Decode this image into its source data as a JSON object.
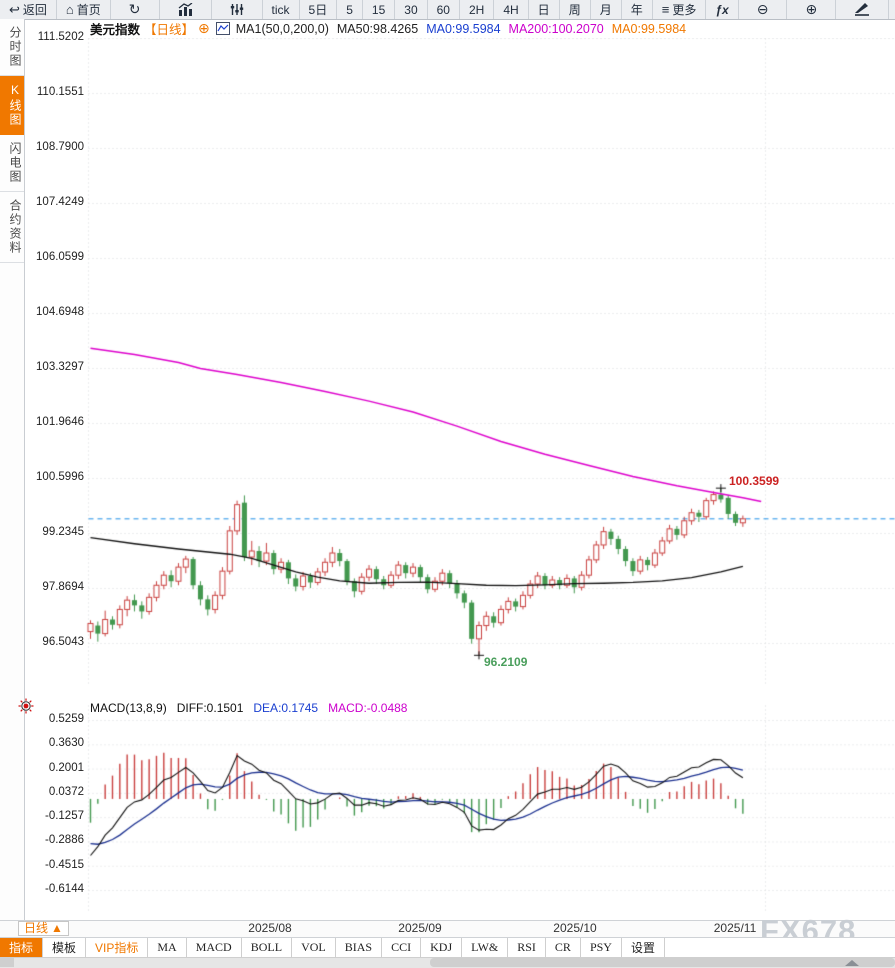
{
  "toolbar": {
    "back": {
      "icon": "↩",
      "label": "返回"
    },
    "home": {
      "icon": "⌂",
      "label": "首页"
    },
    "refresh_icon": "↻",
    "tick": "tick",
    "d5": "5日",
    "m5": "5",
    "m15": "15",
    "m30": "30",
    "m60": "60",
    "h2": "2H",
    "h4": "4H",
    "day": "日",
    "week": "周",
    "month": "月",
    "year": "年",
    "more": {
      "icon": "≡",
      "label": "更多"
    },
    "fx": "ƒx",
    "zoom_out": "⊖",
    "zoom_in": "⊕"
  },
  "legend": {
    "symbol": "美元指数",
    "period": "【日线】",
    "add_icon": "⊕",
    "ma_group": "MA1(50,0,200,0)",
    "ma50": "MA50:98.4265",
    "ma0_blue": "MA0:99.5984",
    "ma200": "MA200:100.2070",
    "ma0_orange": "MA0:99.5984"
  },
  "sidebar": {
    "items": [
      {
        "label": "分时图",
        "active": false
      },
      {
        "label": "K线图",
        "active": true
      },
      {
        "label": "闪电图",
        "active": false
      },
      {
        "label": "合约资料",
        "active": false
      }
    ]
  },
  "macd_header": {
    "title": "MACD(13,8,9)",
    "diff": "DIFF:0.1501",
    "dea": "DEA:0.1745",
    "macd": "MACD:-0.0488"
  },
  "annotations": {
    "high_label": "100.3599",
    "low_label": "96.2109"
  },
  "date_axis": {
    "period_label": "日线",
    "period_arrow": "▲",
    "watermark": "FX678"
  },
  "bottom_tabs": {
    "items": [
      {
        "label": "指标",
        "style": "active"
      },
      {
        "label": "模板",
        "style": ""
      },
      {
        "label": "VIP指标",
        "style": "vip"
      },
      {
        "label": "MA",
        "style": ""
      },
      {
        "label": "MACD",
        "style": ""
      },
      {
        "label": "BOLL",
        "style": ""
      },
      {
        "label": "VOL",
        "style": ""
      },
      {
        "label": "BIAS",
        "style": ""
      },
      {
        "label": "CCI",
        "style": ""
      },
      {
        "label": "KDJ",
        "style": ""
      },
      {
        "label": "LW&",
        "style": ""
      },
      {
        "label": "RSI",
        "style": ""
      },
      {
        "label": "CR",
        "style": ""
      },
      {
        "label": "PSY",
        "style": ""
      },
      {
        "label": "设置",
        "style": ""
      }
    ]
  },
  "chart_data": {
    "type": "candlestick+macd",
    "symbol": "美元指数",
    "period": "日线",
    "colors": {
      "up": "#c9403f",
      "down": "#43984f",
      "ma50": "#111111",
      "ma200": "#dd00cc",
      "last_price_line": "#1e8fe8",
      "diff": "#111111",
      "dea": "#1a2f8f",
      "grid": "#d8dadd",
      "hist_up": "#c9403f",
      "hist_down": "#43984f"
    },
    "main": {
      "y_ticks": [
        111.5202,
        110.1551,
        108.79,
        107.4249,
        106.0599,
        104.6948,
        103.3297,
        101.9646,
        100.5996,
        99.2345,
        97.8694,
        96.5043
      ],
      "candle_order": "open,close,low,high",
      "candles": [
        [
          96.8,
          97.0,
          96.62,
          97.08
        ],
        [
          96.95,
          96.75,
          96.55,
          97.05
        ],
        [
          96.75,
          97.1,
          96.68,
          97.32
        ],
        [
          97.1,
          96.97,
          96.85,
          97.18
        ],
        [
          96.97,
          97.35,
          96.88,
          97.45
        ],
        [
          97.35,
          97.58,
          97.18,
          97.68
        ],
        [
          97.58,
          97.45,
          97.3,
          97.72
        ],
        [
          97.45,
          97.3,
          97.12,
          97.55
        ],
        [
          97.3,
          97.65,
          97.22,
          97.75
        ],
        [
          97.65,
          97.95,
          97.55,
          98.05
        ],
        [
          97.95,
          98.2,
          97.85,
          98.3
        ],
        [
          98.2,
          98.05,
          97.9,
          98.32
        ],
        [
          98.05,
          98.4,
          97.95,
          98.5
        ],
        [
          98.4,
          98.6,
          98.25,
          98.68
        ],
        [
          98.6,
          97.95,
          97.85,
          98.65
        ],
        [
          97.95,
          97.6,
          97.45,
          98.05
        ],
        [
          97.6,
          97.35,
          97.2,
          97.7
        ],
        [
          97.35,
          97.7,
          97.25,
          97.8
        ],
        [
          97.7,
          98.3,
          97.6,
          98.4
        ],
        [
          98.3,
          99.3,
          98.22,
          99.42
        ],
        [
          99.3,
          99.95,
          99.2,
          100.05
        ],
        [
          100.0,
          98.65,
          98.55,
          100.18
        ],
        [
          98.65,
          98.8,
          98.45,
          99.05
        ],
        [
          98.8,
          98.55,
          98.4,
          98.92
        ],
        [
          98.55,
          98.75,
          98.45,
          99.0
        ],
        [
          98.75,
          98.35,
          98.22,
          98.82
        ],
        [
          98.35,
          98.52,
          98.25,
          98.62
        ],
        [
          98.52,
          98.12,
          97.98,
          98.58
        ],
        [
          98.12,
          97.92,
          97.8,
          98.22
        ],
        [
          97.92,
          98.18,
          97.82,
          98.28
        ],
        [
          98.18,
          98.02,
          97.88,
          98.25
        ],
        [
          98.02,
          98.28,
          97.95,
          98.38
        ],
        [
          98.28,
          98.52,
          98.18,
          98.62
        ],
        [
          98.52,
          98.75,
          98.4,
          98.9
        ],
        [
          98.75,
          98.55,
          98.42,
          98.85
        ],
        [
          98.55,
          98.05,
          97.95,
          98.6
        ],
        [
          98.05,
          97.8,
          97.65,
          98.12
        ],
        [
          97.8,
          98.15,
          97.72,
          98.25
        ],
        [
          98.15,
          98.35,
          98.05,
          98.45
        ],
        [
          98.35,
          98.1,
          97.98,
          98.42
        ],
        [
          98.1,
          97.95,
          97.85,
          98.18
        ],
        [
          97.95,
          98.2,
          97.88,
          98.3
        ],
        [
          98.2,
          98.45,
          98.1,
          98.55
        ],
        [
          98.45,
          98.25,
          98.12,
          98.52
        ],
        [
          98.25,
          98.4,
          98.15,
          98.5
        ],
        [
          98.4,
          98.15,
          98.02,
          98.46
        ],
        [
          98.15,
          97.85,
          97.75,
          98.22
        ],
        [
          97.85,
          98.05,
          97.78,
          98.15
        ],
        [
          98.05,
          98.25,
          97.95,
          98.35
        ],
        [
          98.25,
          98.0,
          97.88,
          98.32
        ],
        [
          98.0,
          97.75,
          97.62,
          98.08
        ],
        [
          97.75,
          97.52,
          97.38,
          97.82
        ],
        [
          97.52,
          96.62,
          96.5,
          97.58
        ],
        [
          96.62,
          96.95,
          96.2109,
          97.05
        ],
        [
          96.95,
          97.18,
          96.82,
          97.3
        ],
        [
          97.18,
          97.02,
          96.9,
          97.28
        ],
        [
          97.02,
          97.35,
          96.95,
          97.45
        ],
        [
          97.35,
          97.55,
          97.25,
          97.65
        ],
        [
          97.55,
          97.42,
          97.3,
          97.62
        ],
        [
          97.42,
          97.7,
          97.35,
          97.8
        ],
        [
          97.7,
          97.98,
          97.62,
          98.08
        ],
        [
          97.98,
          98.18,
          97.88,
          98.28
        ],
        [
          98.18,
          97.95,
          97.85,
          98.25
        ],
        [
          97.95,
          98.08,
          97.88,
          98.18
        ],
        [
          98.08,
          97.95,
          97.85,
          98.15
        ],
        [
          97.95,
          98.12,
          97.88,
          98.22
        ],
        [
          98.12,
          97.9,
          97.75,
          98.18
        ],
        [
          97.9,
          98.2,
          97.82,
          98.3
        ],
        [
          98.2,
          98.58,
          98.12,
          98.68
        ],
        [
          98.58,
          98.95,
          98.5,
          99.05
        ],
        [
          98.95,
          99.28,
          98.85,
          99.4
        ],
        [
          99.28,
          99.1,
          98.95,
          99.35
        ],
        [
          99.1,
          98.85,
          98.72,
          99.18
        ],
        [
          98.85,
          98.55,
          98.42,
          98.92
        ],
        [
          98.55,
          98.3,
          98.18,
          98.62
        ],
        [
          98.3,
          98.58,
          98.22,
          98.68
        ],
        [
          98.58,
          98.45,
          98.32,
          98.65
        ],
        [
          98.45,
          98.75,
          98.38,
          98.85
        ],
        [
          98.75,
          99.05,
          98.68,
          99.15
        ],
        [
          99.05,
          99.35,
          98.98,
          99.45
        ],
        [
          99.35,
          99.2,
          99.08,
          99.42
        ],
        [
          99.2,
          99.55,
          99.12,
          99.65
        ],
        [
          99.55,
          99.75,
          99.45,
          99.85
        ],
        [
          99.75,
          99.65,
          99.52,
          99.82
        ],
        [
          99.65,
          100.05,
          99.58,
          100.12
        ],
        [
          100.05,
          100.2,
          99.95,
          100.28
        ],
        [
          100.2,
          100.08,
          100.0,
          100.3599
        ],
        [
          100.12,
          99.72,
          99.6,
          100.18
        ],
        [
          99.72,
          99.5,
          99.42,
          99.78
        ],
        [
          99.5,
          99.5984,
          99.4,
          99.68
        ]
      ],
      "ma50_points": [
        [
          0,
          99.13
        ],
        [
          6,
          98.98
        ],
        [
          12,
          98.85
        ],
        [
          19,
          98.72
        ],
        [
          22,
          98.62
        ],
        [
          25,
          98.45
        ],
        [
          28,
          98.28
        ],
        [
          31,
          98.15
        ],
        [
          34,
          98.06
        ],
        [
          38,
          98.0
        ],
        [
          42,
          98.02
        ],
        [
          46,
          98.03
        ],
        [
          50,
          97.99
        ],
        [
          54,
          97.95
        ],
        [
          58,
          97.94
        ],
        [
          62,
          97.96
        ],
        [
          66,
          97.99
        ],
        [
          70,
          98.0
        ],
        [
          74,
          98.02
        ],
        [
          78,
          98.06
        ],
        [
          82,
          98.14
        ],
        [
          86,
          98.28
        ],
        [
          89,
          98.42
        ]
      ],
      "ma200_points": [
        [
          0,
          103.83
        ],
        [
          6,
          103.68
        ],
        [
          12,
          103.48
        ],
        [
          15,
          103.33
        ],
        [
          20,
          103.18
        ],
        [
          26,
          102.98
        ],
        [
          32,
          102.76
        ],
        [
          38,
          102.52
        ],
        [
          44,
          102.25
        ],
        [
          50,
          101.9
        ],
        [
          56,
          101.52
        ],
        [
          62,
          101.2
        ],
        [
          68,
          100.92
        ],
        [
          74,
          100.65
        ],
        [
          80,
          100.42
        ],
        [
          85,
          100.25
        ],
        [
          89,
          100.12
        ],
        [
          91.5,
          100.03
        ]
      ],
      "last_price_line": 99.5984,
      "high_marker": {
        "index": 86,
        "price": 100.3599
      },
      "low_marker": {
        "index": 53,
        "price": 96.2109
      }
    },
    "macd": {
      "params": "13,8,9",
      "y_ticks": [
        0.5259,
        0.363,
        0.2001,
        0.0372,
        -0.1257,
        -0.2886,
        -0.4515,
        -0.6144
      ],
      "diff": 0.1501,
      "dea": 0.1745,
      "macd": -0.0488,
      "seed": {
        "ema8": 96.6,
        "ema13": 97.08,
        "dea": -0.28
      }
    },
    "x_axis": {
      "labels": [
        "2025/08",
        "2025/09",
        "2025/10",
        "2025/11"
      ]
    }
  }
}
